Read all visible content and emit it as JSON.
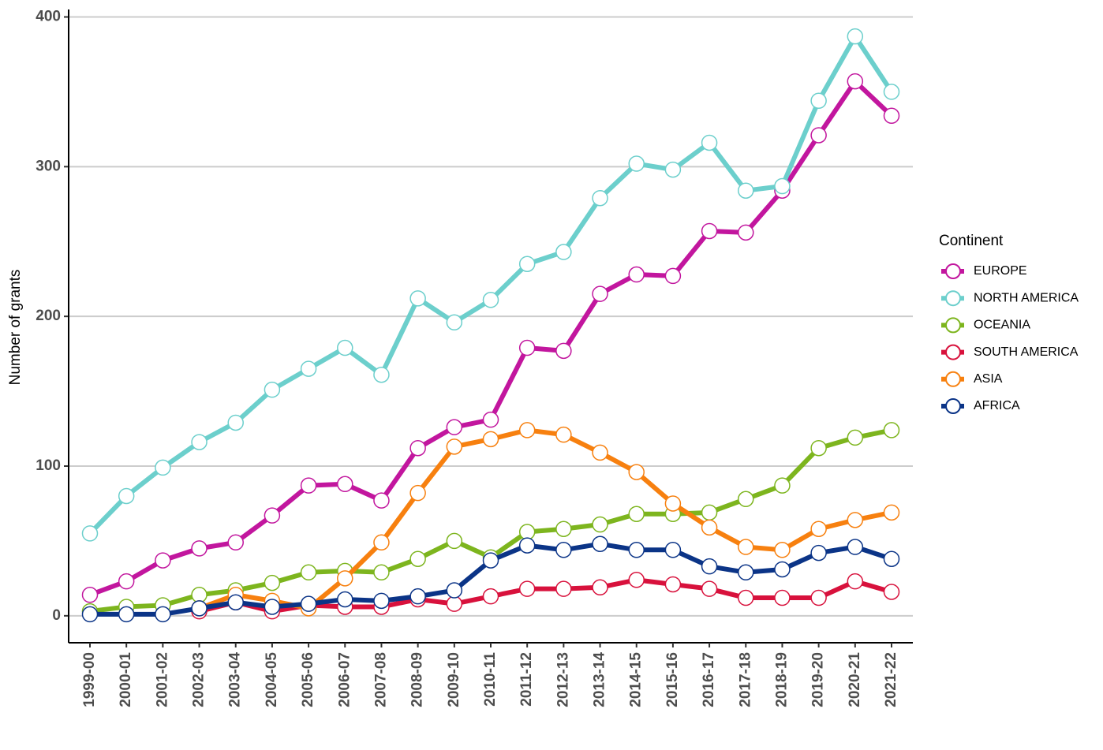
{
  "chart_data": {
    "type": "line",
    "y_label": "Number of grants",
    "legend_title": "Continent",
    "legend_position": "right",
    "grid": true,
    "categories": [
      "1999-00",
      "2000-01",
      "2001-02",
      "2002-03",
      "2003-04",
      "2004-05",
      "2005-06",
      "2006-07",
      "2007-08",
      "2008-09",
      "2009-10",
      "2010-11",
      "2011-12",
      "2012-13",
      "2013-14",
      "2014-15",
      "2015-16",
      "2016-17",
      "2017-18",
      "2018-19",
      "2019-20",
      "2020-21",
      "2021-22"
    ],
    "ylim": [
      -18,
      405
    ],
    "yticks": [
      0,
      100,
      200,
      300,
      400
    ],
    "series": [
      {
        "name": "EUROPE",
        "color": "#c2169e",
        "values": [
          14,
          23,
          37,
          45,
          49,
          67,
          87,
          88,
          77,
          112,
          126,
          131,
          179,
          177,
          215,
          228,
          227,
          257,
          256,
          284,
          321,
          357,
          334
        ]
      },
      {
        "name": "NORTH AMERICA",
        "color": "#6ccfcc",
        "values": [
          55,
          80,
          99,
          116,
          129,
          151,
          165,
          179,
          161,
          212,
          196,
          211,
          235,
          243,
          279,
          302,
          298,
          316,
          284,
          287,
          344,
          387,
          350
        ]
      },
      {
        "name": "OCEANIA",
        "color": "#7db51e",
        "values": [
          3,
          6,
          7,
          14,
          17,
          22,
          29,
          30,
          29,
          38,
          50,
          39,
          56,
          58,
          61,
          68,
          68,
          69,
          78,
          87,
          112,
          119,
          124
        ]
      },
      {
        "name": "SOUTH AMERICA",
        "color": "#d8113c",
        "values": [
          null,
          null,
          null,
          3,
          9,
          3,
          7,
          6,
          6,
          11,
          8,
          13,
          18,
          18,
          19,
          24,
          21,
          18,
          12,
          12,
          12,
          23,
          16
        ]
      },
      {
        "name": "ASIA",
        "color": "#f7800f",
        "values": [
          null,
          null,
          null,
          5,
          14,
          10,
          5,
          25,
          49,
          82,
          113,
          118,
          124,
          121,
          109,
          96,
          75,
          59,
          46,
          44,
          58,
          64,
          69
        ]
      },
      {
        "name": "AFRICA",
        "color": "#0b3487",
        "values": [
          1,
          1,
          1,
          5,
          9,
          6,
          8,
          11,
          10,
          13,
          17,
          37,
          47,
          44,
          48,
          44,
          44,
          33,
          29,
          31,
          42,
          46,
          38
        ]
      }
    ]
  }
}
